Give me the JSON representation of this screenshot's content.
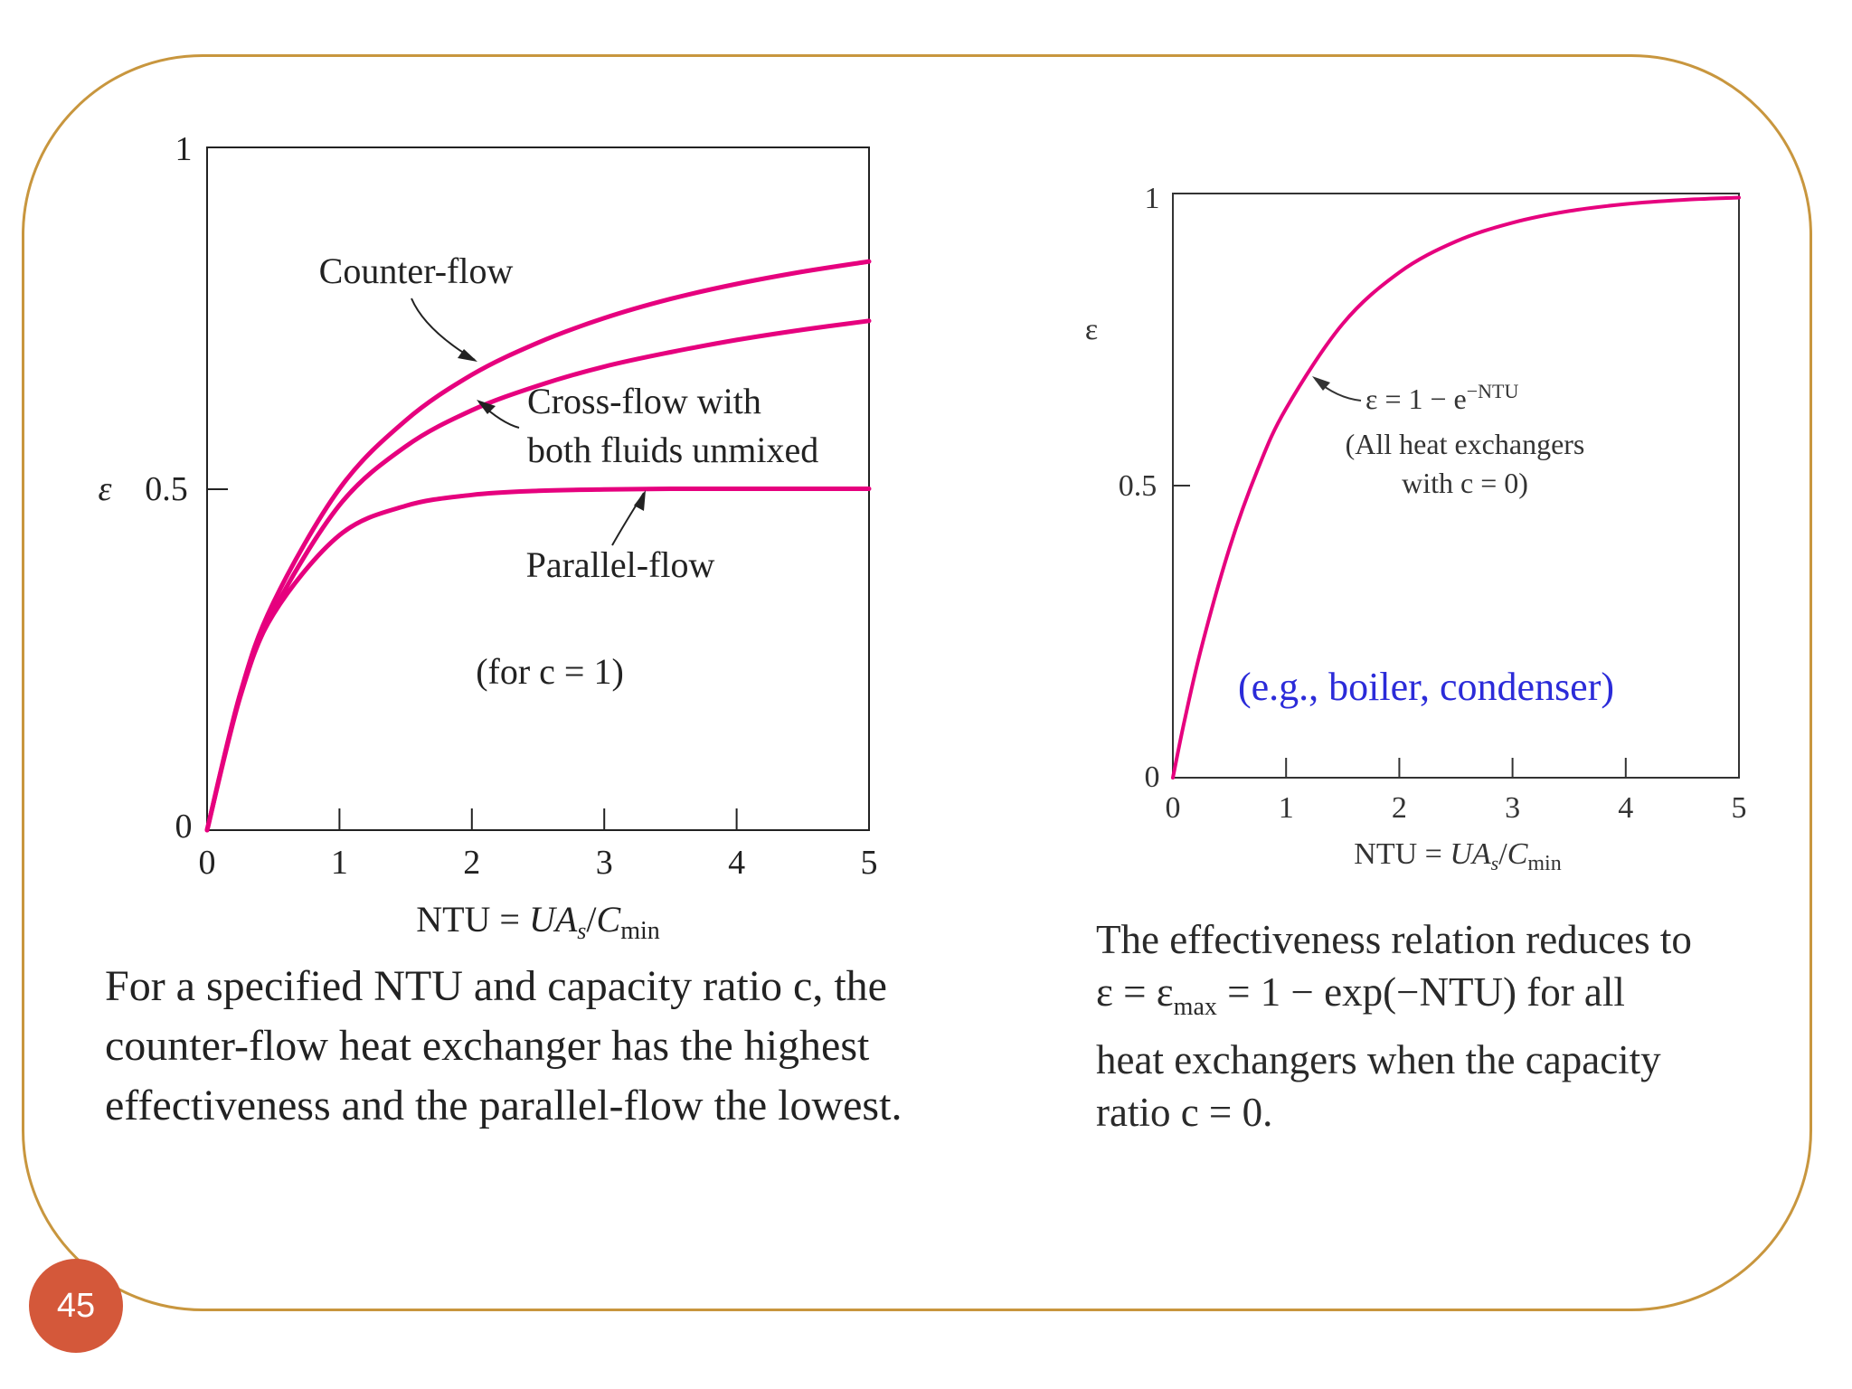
{
  "page_number": "45",
  "colors": {
    "curve": "#e6007e",
    "frame": "#c8963e",
    "badge": "#d4583a",
    "note": "#2b2bd9"
  },
  "left_caption": "For a specified NTU and capacity ratio c, the counter-flow heat exchanger has the highest effectiveness and the parallel-flow the lowest.",
  "right_caption": {
    "line1": "The effectiveness relation reduces to",
    "line2_a": "ε = ε",
    "line2_sub": "max",
    "line2_b": " = 1 − exp(−NTU) for all",
    "line3": "heat exchangers when the capacity",
    "line4": "ratio c = 0."
  },
  "chart_data": [
    {
      "type": "line",
      "xlabel": "NTU = UA_s/C_min",
      "xlabel_parts": {
        "a": "NTU = ",
        "b": "UA",
        "b_sub": "s",
        "c": "/",
        "d": "C",
        "d_sub": "min"
      },
      "ylabel": "ε",
      "xlim": [
        0,
        5
      ],
      "ylim": [
        0,
        1
      ],
      "x_ticks": [
        "0",
        "1",
        "2",
        "3",
        "4",
        "5"
      ],
      "y_ticks": [
        "0",
        "0.5",
        "1"
      ],
      "series": [
        {
          "name": "Counter-flow",
          "label": "Counter-flow",
          "x": [
            0,
            0.25,
            0.5,
            1,
            1.5,
            2,
            2.5,
            3,
            3.5,
            4,
            4.5,
            5
          ],
          "values": [
            0,
            0.2,
            0.333,
            0.5,
            0.6,
            0.667,
            0.714,
            0.75,
            0.778,
            0.8,
            0.818,
            0.833
          ]
        },
        {
          "name": "Cross-flow with both fluids unmixed",
          "label_line1": "Cross-flow with",
          "label_line2": "both fluids unmixed",
          "x": [
            0,
            0.25,
            0.5,
            1,
            1.5,
            2,
            2.5,
            3,
            3.5,
            4,
            4.5,
            5
          ],
          "values": [
            0,
            0.195,
            0.32,
            0.476,
            0.562,
            0.615,
            0.651,
            0.679,
            0.7,
            0.718,
            0.733,
            0.746
          ]
        },
        {
          "name": "Parallel-flow",
          "label": "Parallel-flow",
          "x": [
            0,
            0.25,
            0.5,
            1,
            1.5,
            2,
            2.5,
            3,
            3.5,
            4,
            4.5,
            5
          ],
          "values": [
            0,
            0.197,
            0.316,
            0.432,
            0.475,
            0.491,
            0.497,
            0.499,
            0.5,
            0.5,
            0.5,
            0.5
          ]
        }
      ],
      "annotation": "(for c = 1)"
    },
    {
      "type": "line",
      "xlabel": "NTU = UA_s/C_min",
      "xlabel_parts": {
        "a": "NTU = ",
        "b": "UA",
        "b_sub": "s",
        "c": "/",
        "d": "C",
        "d_sub": "min"
      },
      "ylabel": "ε",
      "xlim": [
        0,
        5
      ],
      "ylim": [
        0,
        1
      ],
      "x_ticks": [
        "0",
        "1",
        "2",
        "3",
        "4",
        "5"
      ],
      "y_ticks": [
        "0",
        "0.5",
        "1"
      ],
      "series": [
        {
          "name": "ε = 1 − e^−NTU",
          "x": [
            0,
            0.1,
            0.25,
            0.5,
            0.75,
            1,
            1.5,
            2,
            2.5,
            3,
            3.5,
            4,
            4.5,
            5
          ],
          "values": [
            0,
            0.095,
            0.221,
            0.393,
            0.528,
            0.632,
            0.777,
            0.865,
            0.918,
            0.95,
            0.97,
            0.982,
            0.989,
            0.993
          ]
        }
      ],
      "equation_label": {
        "a": "ε = 1 − e",
        "sup": "−NTU"
      },
      "annotation_line1": "(All heat exchangers",
      "annotation_line2": "with c = 0)",
      "note": "(e.g., boiler, condenser)"
    }
  ]
}
